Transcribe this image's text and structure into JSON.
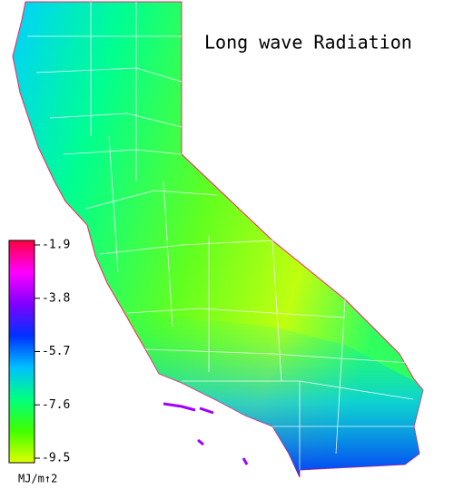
{
  "title": "Long wave Radiation",
  "colorbar": {
    "lim": [
      -1.9,
      -9.5
    ],
    "ticks": [
      -1.9,
      -3.8,
      -5.7,
      -7.6,
      -9.5
    ],
    "unit": "MJ/m↑2",
    "colors": [
      "#ff0040",
      "#ff00ff",
      "#8000ff",
      "#0030ff",
      "#00c0ff",
      "#00ff80",
      "#40ff00",
      "#e0ff00"
    ]
  }
}
